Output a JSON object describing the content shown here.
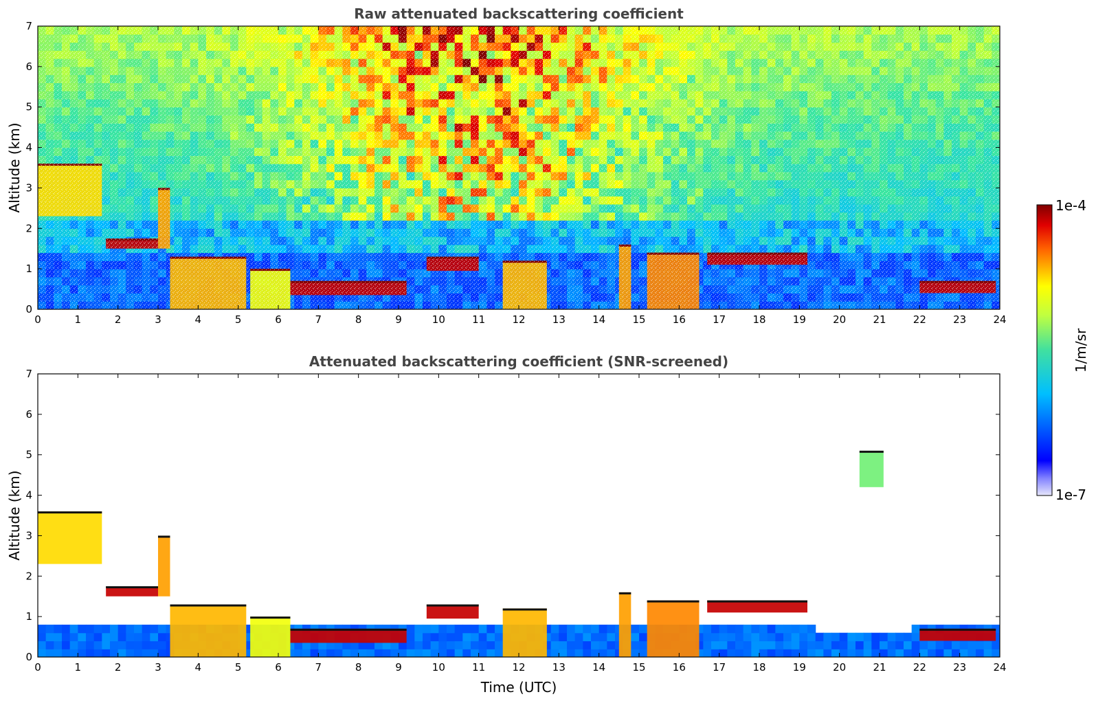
{
  "chart_data": [
    {
      "type": "heatmap",
      "title": "Raw attenuated backscattering coefficient",
      "xlabel": "",
      "ylabel": "Altitude (km)",
      "xlim": [
        0,
        24
      ],
      "ylim": [
        0,
        7
      ],
      "xticks": [
        "0",
        "1",
        "2",
        "3",
        "4",
        "5",
        "6",
        "7",
        "8",
        "9",
        "10",
        "11",
        "12",
        "13",
        "14",
        "15",
        "16",
        "17",
        "18",
        "19",
        "20",
        "21",
        "22",
        "23",
        "24"
      ],
      "yticks": [
        "0",
        "1",
        "2",
        "3",
        "4",
        "5",
        "6",
        "7"
      ],
      "screened": false,
      "layers": [
        {
          "x_start": 0.0,
          "x_end": 1.6,
          "y_low": 2.3,
          "y_high": 3.6,
          "level": 0.75
        },
        {
          "x_start": 1.7,
          "x_end": 3.0,
          "y_low": 1.5,
          "y_high": 1.75,
          "level": 0.95
        },
        {
          "x_start": 3.0,
          "x_end": 3.3,
          "y_low": 1.5,
          "y_high": 3.0,
          "level": 0.8
        },
        {
          "x_start": 3.3,
          "x_end": 5.2,
          "y_low": 0.0,
          "y_high": 1.3,
          "level": 0.78
        },
        {
          "x_start": 5.3,
          "x_end": 6.3,
          "y_low": 0.0,
          "y_high": 1.0,
          "level": 0.7
        },
        {
          "x_start": 6.3,
          "x_end": 9.2,
          "y_low": 0.35,
          "y_high": 0.7,
          "level": 0.95
        },
        {
          "x_start": 9.7,
          "x_end": 11.0,
          "y_low": 0.95,
          "y_high": 1.3,
          "level": 0.95
        },
        {
          "x_start": 11.6,
          "x_end": 12.7,
          "y_low": 0.0,
          "y_high": 1.2,
          "level": 0.78
        },
        {
          "x_start": 14.5,
          "x_end": 14.8,
          "y_low": 0.0,
          "y_high": 1.6,
          "level": 0.8
        },
        {
          "x_start": 15.2,
          "x_end": 16.5,
          "y_low": 0.0,
          "y_high": 1.4,
          "level": 0.82
        },
        {
          "x_start": 16.7,
          "x_end": 19.2,
          "y_low": 1.1,
          "y_high": 1.4,
          "level": 0.95
        },
        {
          "x_start": 22.0,
          "x_end": 23.9,
          "y_low": 0.4,
          "y_high": 0.7,
          "level": 0.95
        }
      ]
    },
    {
      "type": "heatmap",
      "title": "Attenuated backscattering coefficient (SNR-screened)",
      "xlabel": "Time (UTC)",
      "ylabel": "Altitude (km)",
      "xlim": [
        0,
        24
      ],
      "ylim": [
        0,
        7
      ],
      "xticks": [
        "0",
        "1",
        "2",
        "3",
        "4",
        "5",
        "6",
        "7",
        "8",
        "9",
        "10",
        "11",
        "12",
        "13",
        "14",
        "15",
        "16",
        "17",
        "18",
        "19",
        "20",
        "21",
        "22",
        "23",
        "24"
      ],
      "yticks": [
        "0",
        "1",
        "2",
        "3",
        "4",
        "5",
        "6",
        "7"
      ],
      "screened": true,
      "layers": [
        {
          "x_start": 0.0,
          "x_end": 1.6,
          "y_low": 2.3,
          "y_high": 3.6,
          "level": 0.75
        },
        {
          "x_start": 1.7,
          "x_end": 3.0,
          "y_low": 1.5,
          "y_high": 1.75,
          "level": 0.95
        },
        {
          "x_start": 3.0,
          "x_end": 3.3,
          "y_low": 1.5,
          "y_high": 3.0,
          "level": 0.8
        },
        {
          "x_start": 3.3,
          "x_end": 5.2,
          "y_low": 0.0,
          "y_high": 1.3,
          "level": 0.78
        },
        {
          "x_start": 5.3,
          "x_end": 6.3,
          "y_low": 0.0,
          "y_high": 1.0,
          "level": 0.7
        },
        {
          "x_start": 6.3,
          "x_end": 9.2,
          "y_low": 0.35,
          "y_high": 0.7,
          "level": 0.95
        },
        {
          "x_start": 9.7,
          "x_end": 11.0,
          "y_low": 0.95,
          "y_high": 1.3,
          "level": 0.95
        },
        {
          "x_start": 11.6,
          "x_end": 12.7,
          "y_low": 0.0,
          "y_high": 1.2,
          "level": 0.78
        },
        {
          "x_start": 14.5,
          "x_end": 14.8,
          "y_low": 0.0,
          "y_high": 1.6,
          "level": 0.8
        },
        {
          "x_start": 15.2,
          "x_end": 16.5,
          "y_low": 0.0,
          "y_high": 1.4,
          "level": 0.82
        },
        {
          "x_start": 16.7,
          "x_end": 19.2,
          "y_low": 1.1,
          "y_high": 1.4,
          "level": 0.95
        },
        {
          "x_start": 20.5,
          "x_end": 21.1,
          "y_low": 4.2,
          "y_high": 5.1,
          "level": 0.55
        },
        {
          "x_start": 22.0,
          "x_end": 23.9,
          "y_low": 0.4,
          "y_high": 0.7,
          "level": 0.95
        }
      ]
    }
  ],
  "colorbar": {
    "label": "1/m/sr",
    "max_label": "1e-4",
    "min_label": "1e-7",
    "colormap": "jet",
    "scale": "log",
    "range": [
      1e-07,
      0.0001
    ]
  }
}
